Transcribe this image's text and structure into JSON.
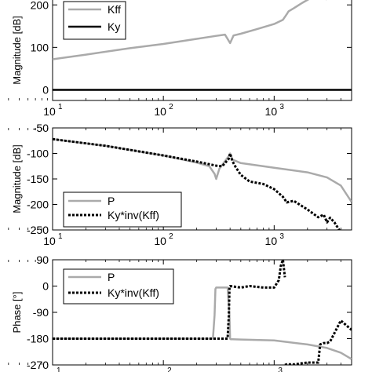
{
  "chart_data": [
    {
      "type": "line",
      "ylabel": "Magnitude [dB]",
      "xscale": "log",
      "xlim": [
        10,
        5000
      ],
      "ylim": [
        -25,
        230
      ],
      "yticks": [
        0,
        100,
        200
      ],
      "ytick_labels": [
        "0",
        "100",
        "200"
      ],
      "xticks": [
        10,
        100,
        1000
      ],
      "xtick_labels": [
        "10",
        "10",
        "10"
      ],
      "xtick_exponents": [
        "1",
        "2",
        "3"
      ],
      "grid": false,
      "legend_position": "top-left",
      "series": [
        {
          "name": "Kff",
          "color": "#aaaaaa",
          "style": "solid",
          "x": [
            10,
            20,
            50,
            100,
            200,
            300,
            360,
            400,
            430,
            500,
            700,
            1000,
            1200,
            1300,
            1350,
            1500,
            1800,
            2200,
            2500,
            2800,
            3000
          ],
          "y": [
            72,
            83,
            98,
            108,
            120,
            127,
            130,
            110,
            128,
            132,
            143,
            155,
            165,
            178,
            185,
            192,
            205,
            218,
            222,
            222,
            212
          ]
        },
        {
          "name": "Ky",
          "color": "#000000",
          "style": "solid",
          "x": [
            10,
            5000
          ],
          "y": [
            0,
            0
          ]
        }
      ]
    },
    {
      "type": "line",
      "ylabel": "Magnitude [dB]",
      "xscale": "log",
      "xlim": [
        10,
        5000
      ],
      "ylim": [
        -250,
        -50
      ],
      "yticks": [
        -50,
        -100,
        -150,
        -200,
        -250
      ],
      "ytick_labels": [
        "-50",
        "-100",
        "-150",
        "-200",
        "-250"
      ],
      "xticks": [
        10,
        100,
        1000
      ],
      "xtick_labels": [
        "10",
        "10",
        "10"
      ],
      "xtick_exponents": [
        "1",
        "2",
        "3"
      ],
      "grid": false,
      "legend_position": "bottom-left",
      "series": [
        {
          "name": "P",
          "color": "#aaaaaa",
          "style": "solid",
          "x": [
            10,
            30,
            100,
            200,
            260,
            290,
            300,
            320,
            360,
            390,
            400,
            420,
            500,
            1000,
            2000,
            3000,
            4000,
            4500,
            5000
          ],
          "y": [
            -72,
            -85,
            -104,
            -118,
            -125,
            -140,
            -150,
            -130,
            -115,
            -105,
            -100,
            -112,
            -119,
            -128,
            -137,
            -147,
            -163,
            -180,
            -195
          ]
        },
        {
          "name": "Ky*inv(Kff)",
          "color": "#000000",
          "style": "dotted",
          "x": [
            10,
            30,
            100,
            200,
            300,
            340,
            390,
            400,
            420,
            450,
            500,
            600,
            800,
            1000,
            1200,
            1300,
            1500,
            2000,
            2500,
            2800,
            3000,
            3200,
            3500,
            4000
          ],
          "y": [
            -72,
            -85,
            -104,
            -116,
            -124,
            -125,
            -110,
            -100,
            -115,
            -127,
            -142,
            -155,
            -160,
            -170,
            -185,
            -196,
            -193,
            -210,
            -225,
            -220,
            -235,
            -226,
            -235,
            -255
          ]
        }
      ]
    },
    {
      "type": "line",
      "ylabel": "Phase [°]",
      "xscale": "log",
      "xlim": [
        10,
        5000
      ],
      "ylim": [
        -270,
        90
      ],
      "yticks": [
        90,
        0,
        -90,
        -180,
        -270
      ],
      "ytick_labels": [
        "90",
        "0",
        "-90",
        "-180",
        "-270"
      ],
      "xticks": [
        10,
        100,
        1000
      ],
      "xtick_labels": [
        "1",
        "2",
        "3"
      ],
      "grid": false,
      "legend_position": "top-left",
      "series": [
        {
          "name": "P",
          "color": "#aaaaaa",
          "style": "solid",
          "x": [
            10,
            100,
            280,
            290,
            295,
            300,
            380,
            395,
            400,
            405,
            420,
            500,
            1000,
            2000,
            3000,
            4000,
            5000
          ],
          "y": [
            -180,
            -180,
            -180,
            -100,
            -10,
            -5,
            -5,
            -100,
            -180,
            -182,
            -182,
            -183,
            -186,
            -200,
            -212,
            -228,
            -250
          ],
          "break_after_index": []
        },
        {
          "name": "Ky*inv(Kff)",
          "color": "#000000",
          "style": "dotted",
          "x": [
            10,
            100,
            380,
            390,
            395,
            400,
            500,
            600,
            800,
            1000,
            1100,
            1150,
            1200,
            1250,
            1250.5,
            1300,
            1500,
            2000,
            2500,
            2600,
            2800,
            3000,
            3200,
            4000,
            4500,
            5000
          ],
          "y": [
            -180,
            -180,
            -180,
            -100,
            -5,
            0,
            -5,
            0,
            -5,
            -5,
            20,
            70,
            90,
            30,
            -270,
            -268,
            -268,
            -262,
            -262,
            -200,
            -195,
            -195,
            -190,
            -118,
            -135,
            -150
          ],
          "break_after_index": [
            13
          ]
        }
      ]
    }
  ]
}
